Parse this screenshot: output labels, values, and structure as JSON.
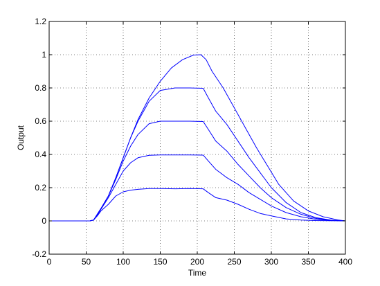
{
  "chart_data": {
    "type": "line",
    "xlabel": "Time",
    "ylabel": "Output",
    "xlim": [
      0,
      400
    ],
    "ylim": [
      -0.2,
      1.2
    ],
    "xticks": [
      0,
      50,
      100,
      150,
      200,
      250,
      300,
      350,
      400
    ],
    "yticks": [
      -0.2,
      0,
      0.2,
      0.4,
      0.6,
      0.8,
      1,
      1.2
    ],
    "xtick_labels": [
      "0",
      "50",
      "100",
      "150",
      "200",
      "250",
      "300",
      "350",
      "400"
    ],
    "ytick_labels": [
      "-0.2",
      "0",
      "0.2",
      "0.4",
      "0.6",
      "0.8",
      "1",
      "1.2"
    ],
    "grid": true,
    "line_color": "#0000ff",
    "series": [
      {
        "x": [
          0,
          55,
          60,
          65,
          70,
          80,
          90,
          100,
          110,
          120,
          135,
          150,
          170,
          190,
          208,
          215,
          225,
          240,
          255,
          270,
          285,
          300,
          320,
          340,
          360,
          380,
          400
        ],
        "values": [
          0,
          0,
          0.005,
          0.03,
          0.06,
          0.1,
          0.15,
          0.175,
          0.185,
          0.19,
          0.195,
          0.195,
          0.193,
          0.195,
          0.193,
          0.17,
          0.14,
          0.125,
          0.1,
          0.07,
          0.045,
          0.03,
          0.012,
          0.005,
          0.002,
          0.001,
          0
        ]
      },
      {
        "x": [
          0,
          55,
          60,
          65,
          70,
          80,
          90,
          100,
          110,
          120,
          135,
          150,
          170,
          190,
          208,
          215,
          225,
          240,
          255,
          270,
          285,
          300,
          320,
          340,
          360,
          380,
          400
        ],
        "values": [
          0,
          0,
          0.005,
          0.035,
          0.07,
          0.14,
          0.22,
          0.3,
          0.35,
          0.38,
          0.395,
          0.397,
          0.397,
          0.397,
          0.396,
          0.36,
          0.31,
          0.26,
          0.22,
          0.17,
          0.13,
          0.09,
          0.05,
          0.025,
          0.01,
          0.003,
          0
        ]
      },
      {
        "x": [
          0,
          55,
          60,
          65,
          70,
          80,
          90,
          100,
          110,
          120,
          135,
          150,
          170,
          190,
          208,
          215,
          225,
          240,
          255,
          270,
          285,
          300,
          320,
          340,
          360,
          380,
          400
        ],
        "values": [
          0,
          0,
          0.005,
          0.04,
          0.075,
          0.15,
          0.25,
          0.36,
          0.45,
          0.52,
          0.585,
          0.6,
          0.6,
          0.6,
          0.598,
          0.55,
          0.48,
          0.42,
          0.34,
          0.27,
          0.2,
          0.14,
          0.08,
          0.04,
          0.015,
          0.004,
          0
        ]
      },
      {
        "x": [
          0,
          55,
          60,
          65,
          70,
          80,
          90,
          100,
          110,
          120,
          135,
          150,
          170,
          190,
          208,
          215,
          225,
          240,
          255,
          270,
          285,
          300,
          320,
          340,
          360,
          380,
          400
        ],
        "values": [
          0,
          0,
          0.005,
          0.04,
          0.075,
          0.15,
          0.26,
          0.38,
          0.5,
          0.6,
          0.72,
          0.785,
          0.8,
          0.8,
          0.798,
          0.74,
          0.66,
          0.58,
          0.48,
          0.38,
          0.29,
          0.2,
          0.11,
          0.05,
          0.02,
          0.005,
          0
        ]
      },
      {
        "x": [
          0,
          55,
          60,
          65,
          70,
          80,
          90,
          100,
          110,
          120,
          135,
          150,
          165,
          180,
          195,
          205,
          212,
          220,
          235,
          250,
          265,
          280,
          295,
          310,
          330,
          350,
          370,
          390,
          400
        ],
        "values": [
          0,
          0,
          0.005,
          0.04,
          0.075,
          0.15,
          0.26,
          0.38,
          0.5,
          0.61,
          0.74,
          0.84,
          0.92,
          0.97,
          0.998,
          1.0,
          0.97,
          0.9,
          0.8,
          0.68,
          0.56,
          0.44,
          0.33,
          0.22,
          0.12,
          0.06,
          0.025,
          0.006,
          0
        ]
      }
    ]
  }
}
